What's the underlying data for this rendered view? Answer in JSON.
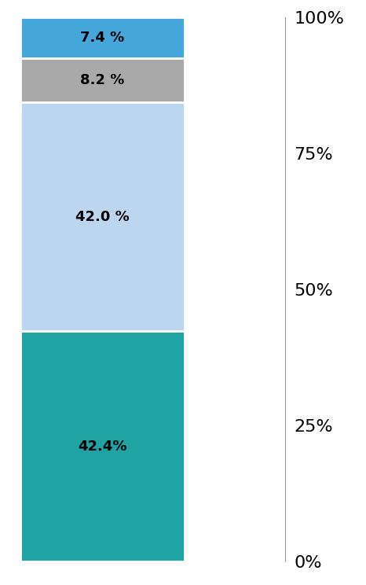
{
  "chart_data": {
    "type": "bar",
    "stacked": true,
    "data_labels": true,
    "grid": false,
    "categories": [
      null
    ],
    "series": [
      {
        "color": "#1fa3a3",
        "values": [
          42.4
        ],
        "value_labels": [
          "42.4%"
        ]
      },
      {
        "color": "#bcd6ef",
        "values": [
          42.0
        ],
        "value_labels": [
          "42.0 %"
        ]
      },
      {
        "color": "#a9a9a9",
        "values": [
          8.2
        ],
        "value_labels": [
          "8.2 %"
        ]
      },
      {
        "color": "#45a6d9",
        "values": [
          7.4
        ],
        "value_labels": [
          "7.4 %"
        ]
      }
    ],
    "ylim": [
      0,
      100
    ],
    "yticks": [
      {
        "value": 0,
        "label": "0%"
      },
      {
        "value": 25,
        "label": "25%"
      },
      {
        "value": 50,
        "label": "50%"
      },
      {
        "value": 75,
        "label": "75%"
      },
      {
        "value": 100,
        "label": "100%"
      }
    ]
  }
}
